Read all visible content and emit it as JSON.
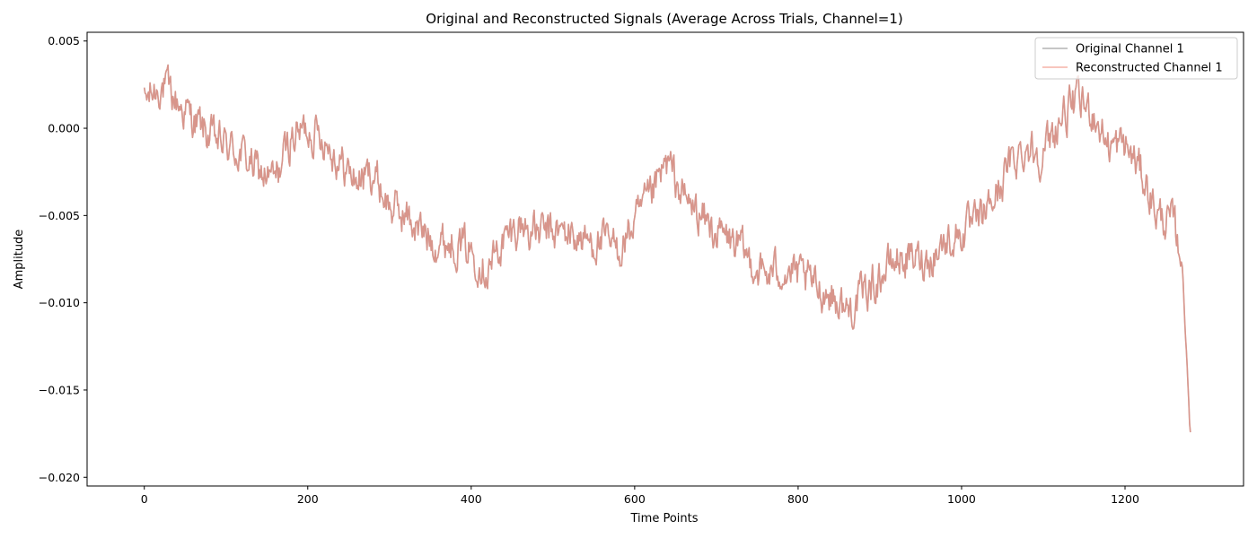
{
  "chart_data": {
    "type": "line",
    "title": "Original and Reconstructed Signals (Average Across Trials, Channel=1)",
    "xlabel": "Time Points",
    "ylabel": "Amplitude",
    "xlim": [
      -70,
      1345
    ],
    "ylim": [
      -0.0205,
      0.0055
    ],
    "xticks": [
      0,
      200,
      400,
      600,
      800,
      1000,
      1200
    ],
    "yticks": [
      0.005,
      0.0,
      -0.005,
      -0.01,
      -0.015,
      -0.02
    ],
    "xtick_labels": [
      "0",
      "200",
      "400",
      "600",
      "800",
      "1000",
      "1200"
    ],
    "ytick_labels": [
      "0.005",
      "0.000",
      "−0.005",
      "−0.010",
      "−0.015",
      "−0.020"
    ],
    "legend_position": "top-right",
    "grid": false,
    "series": [
      {
        "name": "Original Channel 1",
        "color": "#808080",
        "opacity": 0.6,
        "anchors": [
          [
            0,
            0.0015
          ],
          [
            20,
            0.0025
          ],
          [
            40,
            0.0015
          ],
          [
            60,
            0.0005
          ],
          [
            80,
            -0.0005
          ],
          [
            100,
            -0.001
          ],
          [
            120,
            -0.0015
          ],
          [
            140,
            -0.0025
          ],
          [
            160,
            -0.003
          ],
          [
            180,
            -0.0005
          ],
          [
            200,
            0.0
          ],
          [
            220,
            -0.0005
          ],
          [
            240,
            -0.002
          ],
          [
            260,
            -0.003
          ],
          [
            280,
            -0.0025
          ],
          [
            300,
            -0.0045
          ],
          [
            320,
            -0.005
          ],
          [
            340,
            -0.006
          ],
          [
            360,
            -0.0065
          ],
          [
            380,
            -0.0065
          ],
          [
            400,
            -0.007
          ],
          [
            420,
            -0.008
          ],
          [
            440,
            -0.0065
          ],
          [
            460,
            -0.0055
          ],
          [
            480,
            -0.006
          ],
          [
            500,
            -0.006
          ],
          [
            520,
            -0.006
          ],
          [
            540,
            -0.0065
          ],
          [
            560,
            -0.0065
          ],
          [
            580,
            -0.007
          ],
          [
            600,
            -0.0055
          ],
          [
            620,
            -0.004
          ],
          [
            640,
            -0.002
          ],
          [
            660,
            -0.004
          ],
          [
            680,
            -0.005
          ],
          [
            700,
            -0.006
          ],
          [
            720,
            -0.0065
          ],
          [
            740,
            -0.0075
          ],
          [
            760,
            -0.0085
          ],
          [
            780,
            -0.008
          ],
          [
            800,
            -0.0085
          ],
          [
            820,
            -0.009
          ],
          [
            840,
            -0.0095
          ],
          [
            860,
            -0.0105
          ],
          [
            880,
            -0.0095
          ],
          [
            900,
            -0.0085
          ],
          [
            920,
            -0.0075
          ],
          [
            940,
            -0.0075
          ],
          [
            960,
            -0.0075
          ],
          [
            980,
            -0.0065
          ],
          [
            1000,
            -0.006
          ],
          [
            1020,
            -0.0055
          ],
          [
            1040,
            -0.004
          ],
          [
            1060,
            -0.002
          ],
          [
            1080,
            -0.001
          ],
          [
            1100,
            -0.0015
          ],
          [
            1120,
            0.0005
          ],
          [
            1140,
            0.0015
          ],
          [
            1160,
            0.001
          ],
          [
            1180,
            -0.001
          ],
          [
            1200,
            -0.001
          ],
          [
            1220,
            -0.0025
          ],
          [
            1240,
            -0.005
          ],
          [
            1260,
            -0.0055
          ],
          [
            1270,
            -0.008
          ],
          [
            1275,
            -0.0125
          ],
          [
            1280,
            -0.0175
          ]
        ],
        "noise_amplitude": 0.0013
      },
      {
        "name": "Reconstructed Channel 1",
        "color": "#f08070",
        "opacity": 0.6,
        "anchors": [
          [
            0,
            0.0015
          ],
          [
            20,
            0.0025
          ],
          [
            40,
            0.0015
          ],
          [
            60,
            0.0005
          ],
          [
            80,
            -0.0005
          ],
          [
            100,
            -0.001
          ],
          [
            120,
            -0.0015
          ],
          [
            140,
            -0.0025
          ],
          [
            160,
            -0.003
          ],
          [
            180,
            -0.0005
          ],
          [
            200,
            0.0
          ],
          [
            220,
            -0.0005
          ],
          [
            240,
            -0.002
          ],
          [
            260,
            -0.003
          ],
          [
            280,
            -0.0025
          ],
          [
            300,
            -0.0045
          ],
          [
            320,
            -0.005
          ],
          [
            340,
            -0.006
          ],
          [
            360,
            -0.0065
          ],
          [
            380,
            -0.0065
          ],
          [
            400,
            -0.007
          ],
          [
            420,
            -0.008
          ],
          [
            440,
            -0.0065
          ],
          [
            460,
            -0.0055
          ],
          [
            480,
            -0.006
          ],
          [
            500,
            -0.006
          ],
          [
            520,
            -0.006
          ],
          [
            540,
            -0.0065
          ],
          [
            560,
            -0.0065
          ],
          [
            580,
            -0.007
          ],
          [
            600,
            -0.0055
          ],
          [
            620,
            -0.004
          ],
          [
            640,
            -0.002
          ],
          [
            660,
            -0.004
          ],
          [
            680,
            -0.005
          ],
          [
            700,
            -0.006
          ],
          [
            720,
            -0.0065
          ],
          [
            740,
            -0.0075
          ],
          [
            760,
            -0.0085
          ],
          [
            780,
            -0.008
          ],
          [
            800,
            -0.0085
          ],
          [
            820,
            -0.009
          ],
          [
            840,
            -0.0095
          ],
          [
            860,
            -0.0105
          ],
          [
            880,
            -0.0095
          ],
          [
            900,
            -0.0085
          ],
          [
            920,
            -0.0075
          ],
          [
            940,
            -0.0075
          ],
          [
            960,
            -0.0075
          ],
          [
            980,
            -0.0065
          ],
          [
            1000,
            -0.006
          ],
          [
            1020,
            -0.0055
          ],
          [
            1040,
            -0.004
          ],
          [
            1060,
            -0.002
          ],
          [
            1080,
            -0.001
          ],
          [
            1100,
            -0.0015
          ],
          [
            1120,
            0.0005
          ],
          [
            1140,
            0.0015
          ],
          [
            1160,
            0.001
          ],
          [
            1180,
            -0.001
          ],
          [
            1200,
            -0.001
          ],
          [
            1220,
            -0.0025
          ],
          [
            1240,
            -0.005
          ],
          [
            1260,
            -0.0055
          ],
          [
            1270,
            -0.008
          ],
          [
            1275,
            -0.0125
          ],
          [
            1280,
            -0.0175
          ]
        ],
        "noise_amplitude": 0.0013
      }
    ]
  }
}
